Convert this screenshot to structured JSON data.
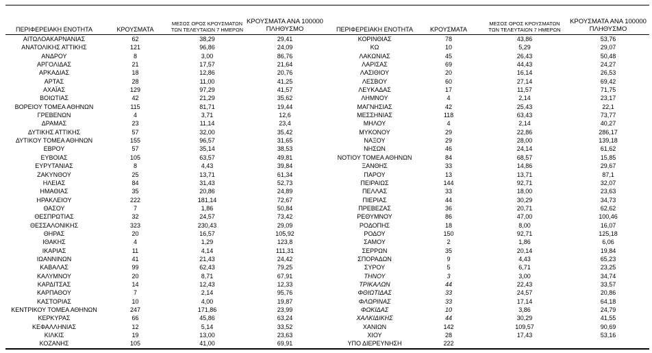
{
  "table": {
    "headers": {
      "region": "ΠΕΡΙΦΕΡΕΙΑΚΗ ΕΝΟΤΗΤΑ",
      "cases": "ΚΡΟΥΣΜΑΤΑ",
      "avg7": "ΜΕΣΟΣ ΟΡΟΣ ΚΡΟΥΣΜΑΤΩΝ\nΤΩΝ ΤΕΛΕΥΤΑΙΩΝ 7 ΗΜΕΡΩΝ",
      "per100k": "ΚΡΟΥΣΜΑΤΑ ΑΝΑ 100000\nΠΛΗΘΥΣΜΟ"
    },
    "left_rows": [
      {
        "region": "ΑΙΤΩΛΟΑΚΑΡΝΑΝΙΑΣ",
        "cases": "62",
        "avg7": "38,29",
        "per100k": "29,41"
      },
      {
        "region": "ΑΝΑΤΟΛΙΚΗΣ ΑΤΤΙΚΗΣ",
        "cases": "121",
        "avg7": "96,86",
        "per100k": "24,09"
      },
      {
        "region": "ΑΝΔΡΟΥ",
        "cases": "8",
        "avg7": "3,00",
        "per100k": "86,76"
      },
      {
        "region": "ΑΡΓΟΛΙΔΑΣ",
        "cases": "21",
        "avg7": "17,57",
        "per100k": "21,64"
      },
      {
        "region": "ΑΡΚΑΔΙΑΣ",
        "cases": "18",
        "avg7": "12,86",
        "per100k": "20,76"
      },
      {
        "region": "ΑΡΤΑΣ",
        "cases": "28",
        "avg7": "11,00",
        "per100k": "41,25"
      },
      {
        "region": "ΑΧΑΪΑΣ",
        "cases": "129",
        "avg7": "97,29",
        "per100k": "41,57"
      },
      {
        "region": "ΒΟΙΩΤΙΑΣ",
        "cases": "42",
        "avg7": "21,29",
        "per100k": "35,62"
      },
      {
        "region": "ΒΟΡΕΙΟΥ ΤΟΜΕΑ ΑΘΗΝΩΝ",
        "cases": "115",
        "avg7": "81,71",
        "per100k": "19,44"
      },
      {
        "region": "ΓΡΕΒΕΝΩΝ",
        "cases": "4",
        "avg7": "3,71",
        "per100k": "12,6"
      },
      {
        "region": "ΔΡΑΜΑΣ",
        "cases": "23",
        "avg7": "11,14",
        "per100k": "23,4"
      },
      {
        "region": "ΔΥΤΙΚΗΣ ΑΤΤΙΚΗΣ",
        "cases": "57",
        "avg7": "32,00",
        "per100k": "35,42"
      },
      {
        "region": "ΔΥΤΙΚΟΥ ΤΟΜΕΑ ΑΘΗΝΩΝ",
        "cases": "155",
        "avg7": "96,57",
        "per100k": "31,65"
      },
      {
        "region": "ΕΒΡΟΥ",
        "cases": "57",
        "avg7": "35,14",
        "per100k": "38,53"
      },
      {
        "region": "ΕΥΒΟΙΑΣ",
        "cases": "105",
        "avg7": "63,57",
        "per100k": "49,81"
      },
      {
        "region": "ΕΥΡΥΤΑΝΙΑΣ",
        "cases": "8",
        "avg7": "4,43",
        "per100k": "39,84"
      },
      {
        "region": "ΖΑΚΥΝΘΟΥ",
        "cases": "25",
        "avg7": "13,71",
        "per100k": "61,34"
      },
      {
        "region": "ΗΛΕΙΑΣ",
        "cases": "84",
        "avg7": "31,43",
        "per100k": "52,73"
      },
      {
        "region": "ΗΜΑΘΙΑΣ",
        "cases": "35",
        "avg7": "20,86",
        "per100k": "24,89"
      },
      {
        "region": "ΗΡΑΚΛΕΙΟΥ",
        "cases": "222",
        "avg7": "181,14",
        "per100k": "72,67"
      },
      {
        "region": "ΘΑΣΟΥ",
        "cases": "7",
        "avg7": "1,86",
        "per100k": "50,84"
      },
      {
        "region": "ΘΕΣΠΡΩΤΙΑΣ",
        "cases": "32",
        "avg7": "24,57",
        "per100k": "73,42"
      },
      {
        "region": "ΘΕΣΣΑΛΟΝΙΚΗΣ",
        "cases": "323",
        "avg7": "230,43",
        "per100k": "29,09"
      },
      {
        "region": "ΘΗΡΑΣ",
        "cases": "20",
        "avg7": "16,57",
        "per100k": "105,92"
      },
      {
        "region": "ΙΘΑΚΗΣ",
        "cases": "4",
        "avg7": "1,29",
        "per100k": "123,8"
      },
      {
        "region": "ΙΚΑΡΙΑΣ",
        "cases": "11",
        "avg7": "4,14",
        "per100k": "111,31"
      },
      {
        "region": "ΙΩΑΝΝΙΝΩΝ",
        "cases": "41",
        "avg7": "21,43",
        "per100k": "24,42"
      },
      {
        "region": "ΚΑΒΑΛΑΣ",
        "cases": "99",
        "avg7": "62,43",
        "per100k": "79,25"
      },
      {
        "region": "ΚΑΛΥΜΝΟΥ",
        "cases": "20",
        "avg7": "8,71",
        "per100k": "67,91"
      },
      {
        "region": "ΚΑΡΔΙΤΣΑΣ",
        "cases": "14",
        "avg7": "12,43",
        "per100k": "12,33"
      },
      {
        "region": "ΚΑΡΠΑΘΟΥ",
        "cases": "7",
        "avg7": "2,14",
        "per100k": "95,76"
      },
      {
        "region": "ΚΑΣΤΟΡΙΑΣ",
        "cases": "10",
        "avg7": "4,00",
        "per100k": "19,87"
      },
      {
        "region": "ΚΕΝΤΡΙΚΟΥ ΤΟΜΕΑ ΑΘΗΝΩΝ",
        "cases": "247",
        "avg7": "171,86",
        "per100k": "23,99"
      },
      {
        "region": "ΚΕΡΚΥΡΑΣ",
        "cases": "66",
        "avg7": "45,86",
        "per100k": "63,24"
      },
      {
        "region": "ΚΕΦΑΛΛΗΝΙΑΣ",
        "cases": "12",
        "avg7": "5,14",
        "per100k": "33,52"
      },
      {
        "region": "ΚΙΛΚΙΣ",
        "cases": "19",
        "avg7": "13,00",
        "per100k": "23,63"
      },
      {
        "region": "ΚΟΖΑΝΗΣ",
        "cases": "105",
        "avg7": "41,00",
        "per100k": "69,91"
      }
    ],
    "right_rows": [
      {
        "region": "ΚΟΡΙΝΘΙΑΣ",
        "cases": "78",
        "avg7": "43,86",
        "per100k": "53,76"
      },
      {
        "region": "ΚΩ",
        "cases": "10",
        "avg7": "5,29",
        "per100k": "29,07"
      },
      {
        "region": "ΛΑΚΩΝΙΑΣ",
        "cases": "45",
        "avg7": "26,43",
        "per100k": "50,48"
      },
      {
        "region": "ΛΑΡΙΣΑΣ",
        "cases": "69",
        "avg7": "44,43",
        "per100k": "24,27"
      },
      {
        "region": "ΛΑΣΙΘΙΟΥ",
        "cases": "20",
        "avg7": "16,14",
        "per100k": "26,53"
      },
      {
        "region": "ΛΕΣΒΟΥ",
        "cases": "60",
        "avg7": "27,14",
        "per100k": "69,42"
      },
      {
        "region": "ΛΕΥΚΑΔΑΣ",
        "cases": "17",
        "avg7": "11,57",
        "per100k": "71,75"
      },
      {
        "region": "ΛΗΜΝΟΥ",
        "cases": "4",
        "avg7": "2,14",
        "per100k": "23,17"
      },
      {
        "region": "ΜΑΓΝΗΣΙΑΣ",
        "cases": "42",
        "avg7": "25,43",
        "per100k": "22,1"
      },
      {
        "region": "ΜΕΣΣΗΝΙΑΣ",
        "cases": "118",
        "avg7": "63,43",
        "per100k": "73,77"
      },
      {
        "region": "ΜΗΛΟΥ",
        "cases": "4",
        "avg7": "2,14",
        "per100k": "40,27"
      },
      {
        "region": "ΜΥΚΟΝΟΥ",
        "cases": "29",
        "avg7": "22,86",
        "per100k": "286,17"
      },
      {
        "region": "ΝΑΞΟΥ",
        "cases": "29",
        "avg7": "28,00",
        "per100k": "139,18"
      },
      {
        "region": "ΝΗΣΩΝ",
        "cases": "46",
        "avg7": "24,14",
        "per100k": "61,62"
      },
      {
        "region": "ΝΟΤΙΟΥ ΤΟΜΕΑ ΑΘΗΝΩΝ",
        "cases": "84",
        "avg7": "68,57",
        "per100k": "15,85"
      },
      {
        "region": "ΞΑΝΘΗΣ",
        "cases": "33",
        "avg7": "14,86",
        "per100k": "29,67"
      },
      {
        "region": "ΠΑΡΟΥ",
        "cases": "13",
        "avg7": "13,71",
        "per100k": "87,1"
      },
      {
        "region": "ΠΕΙΡΑΙΩΣ",
        "cases": "144",
        "avg7": "92,71",
        "per100k": "32,07"
      },
      {
        "region": "ΠΕΛΛΑΣ",
        "cases": "33",
        "avg7": "18,00",
        "per100k": "23,63"
      },
      {
        "region": "ΠΙΕΡΙΑΣ",
        "cases": "44",
        "avg7": "30,29",
        "per100k": "34,73"
      },
      {
        "region": "ΠΡΕΒΕΖΑΣ",
        "cases": "36",
        "avg7": "20,71",
        "per100k": "62,62"
      },
      {
        "region": "ΡΕΘΥΜΝΟΥ",
        "cases": "86",
        "avg7": "47,00",
        "per100k": "100,46"
      },
      {
        "region": "ΡΟΔΟΠΗΣ",
        "cases": "18",
        "avg7": "8,00",
        "per100k": "16,07"
      },
      {
        "region": "ΡΟΔΟΥ",
        "cases": "150",
        "avg7": "92,71",
        "per100k": "125,18"
      },
      {
        "region": "ΣΑΜΟΥ",
        "cases": "2",
        "avg7": "1,86",
        "per100k": "6,06"
      },
      {
        "region": "ΣΕΡΡΩΝ",
        "cases": "35",
        "avg7": "20,14",
        "per100k": "19,84"
      },
      {
        "region": "ΣΠΟΡΑΔΩΝ",
        "cases": "9",
        "avg7": "4,43",
        "per100k": "65,23"
      },
      {
        "region": "ΣΥΡΟΥ",
        "cases": "5",
        "avg7": "6,71",
        "per100k": "23,25"
      },
      {
        "region": "ΤΗΝΟΥ",
        "cases": "3",
        "avg7": "3,00",
        "per100k": "34,74",
        "italic": true
      },
      {
        "region": "ΤΡΙΚΑΛΩΝ",
        "cases": "44",
        "avg7": "22,43",
        "per100k": "33,57",
        "italic": true
      },
      {
        "region": "ΦΘΙΩΤΙΔΑΣ",
        "cases": "33",
        "avg7": "24,57",
        "per100k": "20,86",
        "italic": true
      },
      {
        "region": "ΦΛΩΡΙΝΑΣ",
        "cases": "33",
        "avg7": "17,14",
        "per100k": "64,18",
        "italic": true
      },
      {
        "region": "ΦΩΚΙΔΑΣ",
        "cases": "10",
        "avg7": "3,86",
        "per100k": "24,79",
        "italic": true
      },
      {
        "region": "ΧΑΛΚΙΔΙΚΗΣ",
        "cases": "44",
        "avg7": "30,29",
        "per100k": "41,55",
        "italic": true
      },
      {
        "region": "ΧΑΝΙΩΝ",
        "cases": "142",
        "avg7": "109,57",
        "per100k": "90,69"
      },
      {
        "region": "ΧΙΟΥ",
        "cases": "28",
        "avg7": "17,43",
        "per100k": "53,16"
      },
      {
        "region": "ΥΠΟ ΔΙΕΡΕΥΝΗΣΗ",
        "cases": "222",
        "avg7": "",
        "per100k": ""
      }
    ]
  }
}
